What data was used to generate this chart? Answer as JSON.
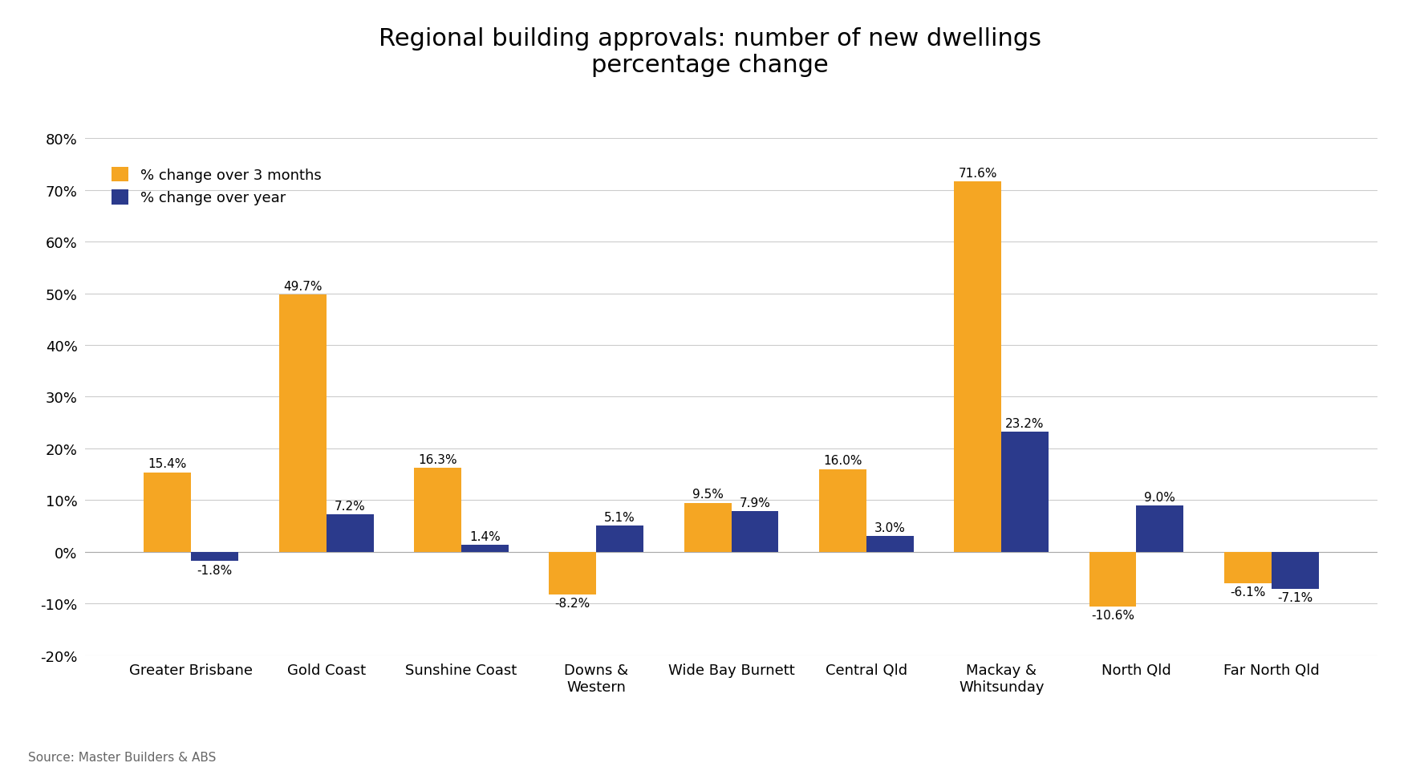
{
  "title": "Regional building approvals: number of new dwellings\npercentage change",
  "categories": [
    "Greater Brisbane",
    "Gold Coast",
    "Sunshine Coast",
    "Downs &\nWestern",
    "Wide Bay Burnett",
    "Central Qld",
    "Mackay &\nWhitsunday",
    "North Qld",
    "Far North Qld"
  ],
  "three_month": [
    15.4,
    49.7,
    16.3,
    -8.2,
    9.5,
    16.0,
    71.6,
    -10.6,
    -6.1
  ],
  "yearly": [
    -1.8,
    7.2,
    1.4,
    5.1,
    7.9,
    3.0,
    23.2,
    9.0,
    -7.1
  ],
  "color_3month": "#F5A623",
  "color_yearly": "#2B3A8C",
  "legend_3month": "% change over 3 months",
  "legend_yearly": "% change over year",
  "ylim": [
    -20,
    80
  ],
  "yticks": [
    -20,
    -10,
    0,
    10,
    20,
    30,
    40,
    50,
    60,
    70,
    80
  ],
  "source": "Source: Master Builders & ABS",
  "background_color": "#FFFFFF",
  "title_fontsize": 22,
  "label_fontsize": 11,
  "legend_fontsize": 13,
  "tick_fontsize": 13,
  "source_fontsize": 11
}
